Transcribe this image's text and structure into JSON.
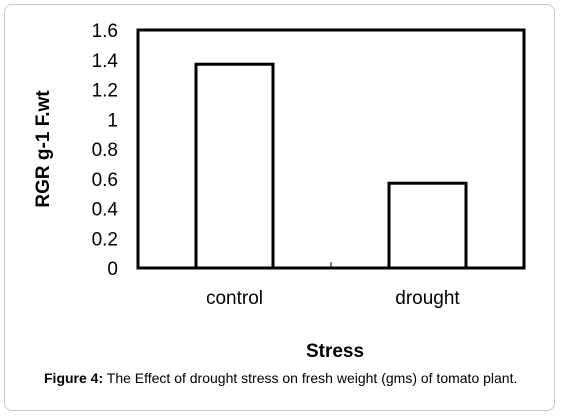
{
  "caption": {
    "label": "Figure 4:",
    "text": "The Effect of drought stress on fresh weight (gms) of tomato plant."
  },
  "chart_data": {
    "type": "bar",
    "categories": [
      "control",
      "drought"
    ],
    "values": [
      1.37,
      0.57
    ],
    "title": "",
    "xlabel": "Stress",
    "ylabel": "RGR g-1 F.wt",
    "ylim": [
      0,
      1.6
    ],
    "yticks": [
      "0",
      "0.2",
      "0.4",
      "0.6",
      "0.8",
      "1",
      "1.2",
      "1.4",
      "1.6"
    ],
    "grid": false,
    "legend": "none",
    "bar_fill": "#ffffff",
    "bar_stroke": "#000000"
  }
}
